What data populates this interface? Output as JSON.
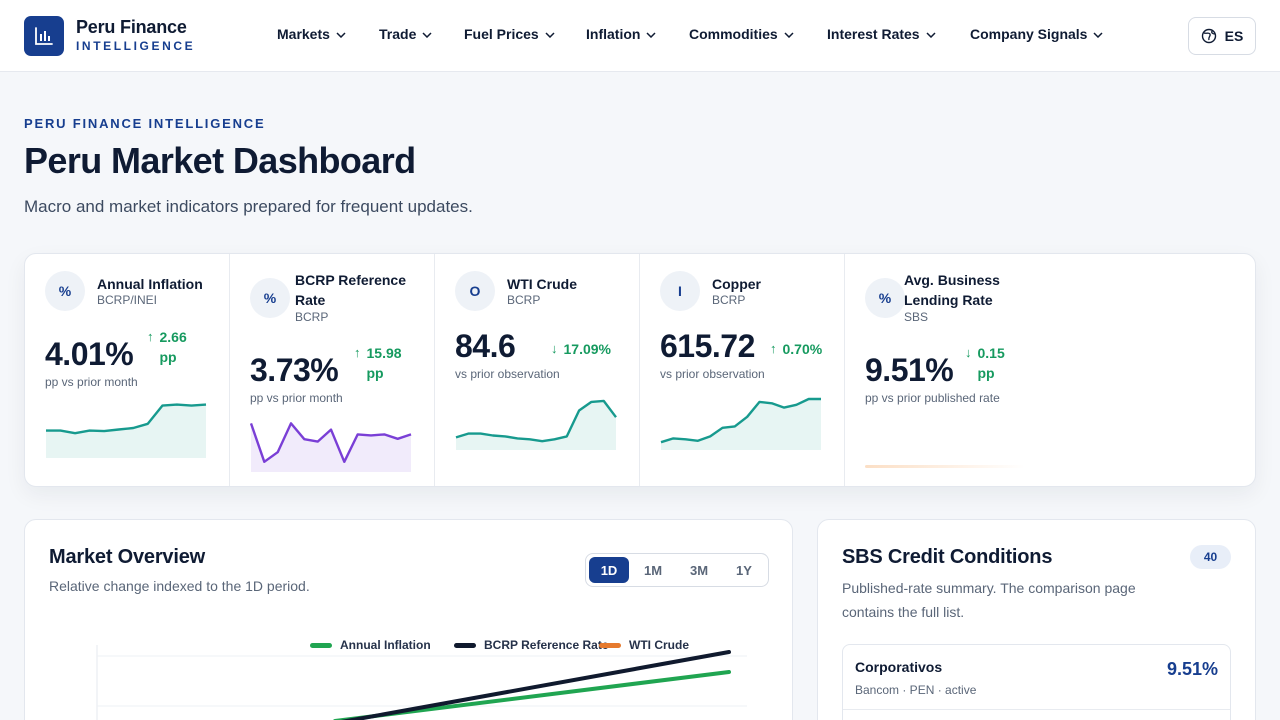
{
  "brand": {
    "name": "Peru Finance",
    "tagline": "INTELLIGENCE"
  },
  "nav": [
    {
      "label": "Markets"
    },
    {
      "label": "Trade"
    },
    {
      "label": "Fuel Prices"
    },
    {
      "label": "Inflation"
    },
    {
      "label": "Commodities"
    },
    {
      "label": "Interest Rates"
    },
    {
      "label": "Company Signals"
    }
  ],
  "language": {
    "label": "ES",
    "icon": "globe-icon"
  },
  "hero": {
    "eyebrow": "PERU FINANCE INTELLIGENCE",
    "title": "Peru Market Dashboard",
    "subtitle": "Macro and market indicators prepared for frequent updates."
  },
  "kpis": [
    {
      "icon": "%",
      "title": "Annual Inflation",
      "source": "BCRP/INEI",
      "value": "4.01%",
      "delta_arrow": "↑",
      "delta": "2.66 pp",
      "note": "pp vs prior month",
      "color": "#179a8e",
      "spark": [
        0.47,
        0.47,
        0.42,
        0.47,
        0.46,
        0.49,
        0.52,
        0.6,
        0.95,
        0.97,
        0.95,
        0.97
      ]
    },
    {
      "icon": "%",
      "title": "BCRP Reference Rate",
      "source": "BCRP",
      "value": "3.73%",
      "delta_arrow": "↑",
      "delta": "15.98 pp",
      "note": "pp vs prior month",
      "color": "#7a3fd6",
      "spark": [
        0.95,
        0.15,
        0.35,
        0.95,
        0.62,
        0.57,
        0.82,
        0.15,
        0.72,
        0.7,
        0.72,
        0.63,
        0.72
      ]
    },
    {
      "icon": "O",
      "title": "WTI Crude",
      "source": "BCRP",
      "value": "84.6",
      "delta_arrow": "↓",
      "delta": "17.09%",
      "note": "vs prior observation",
      "color": "#179a8e",
      "spark": [
        0.2,
        0.28,
        0.28,
        0.24,
        0.22,
        0.18,
        0.16,
        0.12,
        0.16,
        0.22,
        0.76,
        0.94,
        0.96,
        0.62
      ]
    },
    {
      "icon": "I",
      "title": "Copper",
      "source": "BCRP",
      "value": "615.72",
      "delta_arrow": "↑",
      "delta": "0.70%",
      "note": "vs prior observation",
      "color": "#179a8e",
      "spark": [
        0.1,
        0.18,
        0.16,
        0.13,
        0.22,
        0.4,
        0.43,
        0.63,
        0.94,
        0.91,
        0.82,
        0.88,
        1.0,
        1.0
      ]
    },
    {
      "icon": "%",
      "title": "Avg. Business Lending Rate",
      "source": "SBS",
      "value": "9.51%",
      "delta_arrow": "↓",
      "delta": "0.15 pp",
      "note": "pp vs prior published rate",
      "color": "#f4a35a",
      "spark": []
    }
  ],
  "overview": {
    "title": "Market Overview",
    "subtitle": "Relative change indexed to the 1D period.",
    "ranges": [
      "1D",
      "1M",
      "3M",
      "1Y"
    ],
    "active_range": "1D",
    "legend": [
      {
        "name": "Annual Inflation",
        "color": "#20a551"
      },
      {
        "name": "BCRP Reference Rate",
        "color": "#101a2e"
      },
      {
        "name": "WTI Crude",
        "color": "#e67a2e"
      }
    ]
  },
  "sbs": {
    "title": "SBS Credit Conditions",
    "count": "40",
    "subtitle": "Published-rate summary. The comparison page contains the full list.",
    "rates": [
      {
        "name": "Corporativos",
        "meta": "Bancom · PEN · active",
        "value": "9.51%"
      }
    ]
  }
}
